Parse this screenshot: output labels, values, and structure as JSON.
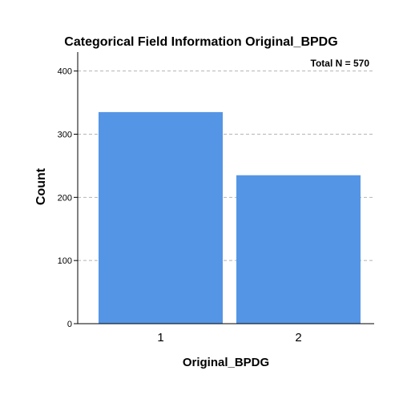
{
  "chart_data": {
    "type": "bar",
    "title": "Categorical Field Information Original_BPDG",
    "annotation": "Total N =  570",
    "xlabel": "Original_BPDG",
    "ylabel": "Count",
    "categories": [
      "1",
      "2"
    ],
    "values": [
      335,
      235
    ],
    "ylim": [
      0,
      430
    ],
    "yticks": [
      0,
      100,
      200,
      300,
      400
    ],
    "grid": true,
    "bar_color": "#5595e5"
  }
}
